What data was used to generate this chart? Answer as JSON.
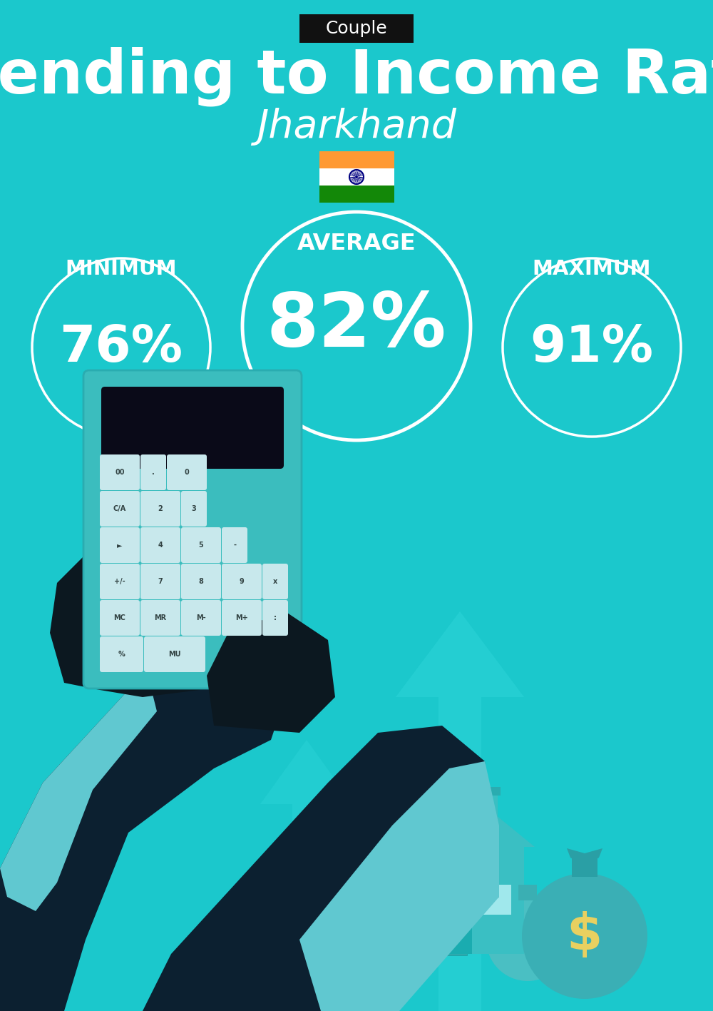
{
  "bg_color": "#1BC8CC",
  "tag_bg": "#111111",
  "tag_text": "Couple",
  "tag_text_color": "#ffffff",
  "title": "Spending to Income Ratio",
  "subtitle": "Jharkhand",
  "title_color": "#ffffff",
  "subtitle_color": "#ffffff",
  "average_label": "AVERAGE",
  "minimum_label": "MINIMUM",
  "maximum_label": "MAXIMUM",
  "label_color": "#ffffff",
  "min_value": "76%",
  "avg_value": "82%",
  "max_value": "91%",
  "value_color": "#ffffff",
  "circle_edge_color": "#ffffff",
  "flag_saffron": "#FF9933",
  "flag_white": "#ffffff",
  "flag_green": "#138808",
  "flag_navy": "#000080",
  "arrow_color": "#2DD4D8",
  "house_color": "#3ABFC3",
  "bag_color": "#3BBFC3",
  "dollar_color": "#E8D060",
  "calc_body": "#3BBDBE",
  "calc_screen": "#0A0A18",
  "btn_color": "#C8E8EC",
  "hand_dark": "#0C1820",
  "sleeve_dark": "#0C2030",
  "cuff_light": "#60C8D0"
}
